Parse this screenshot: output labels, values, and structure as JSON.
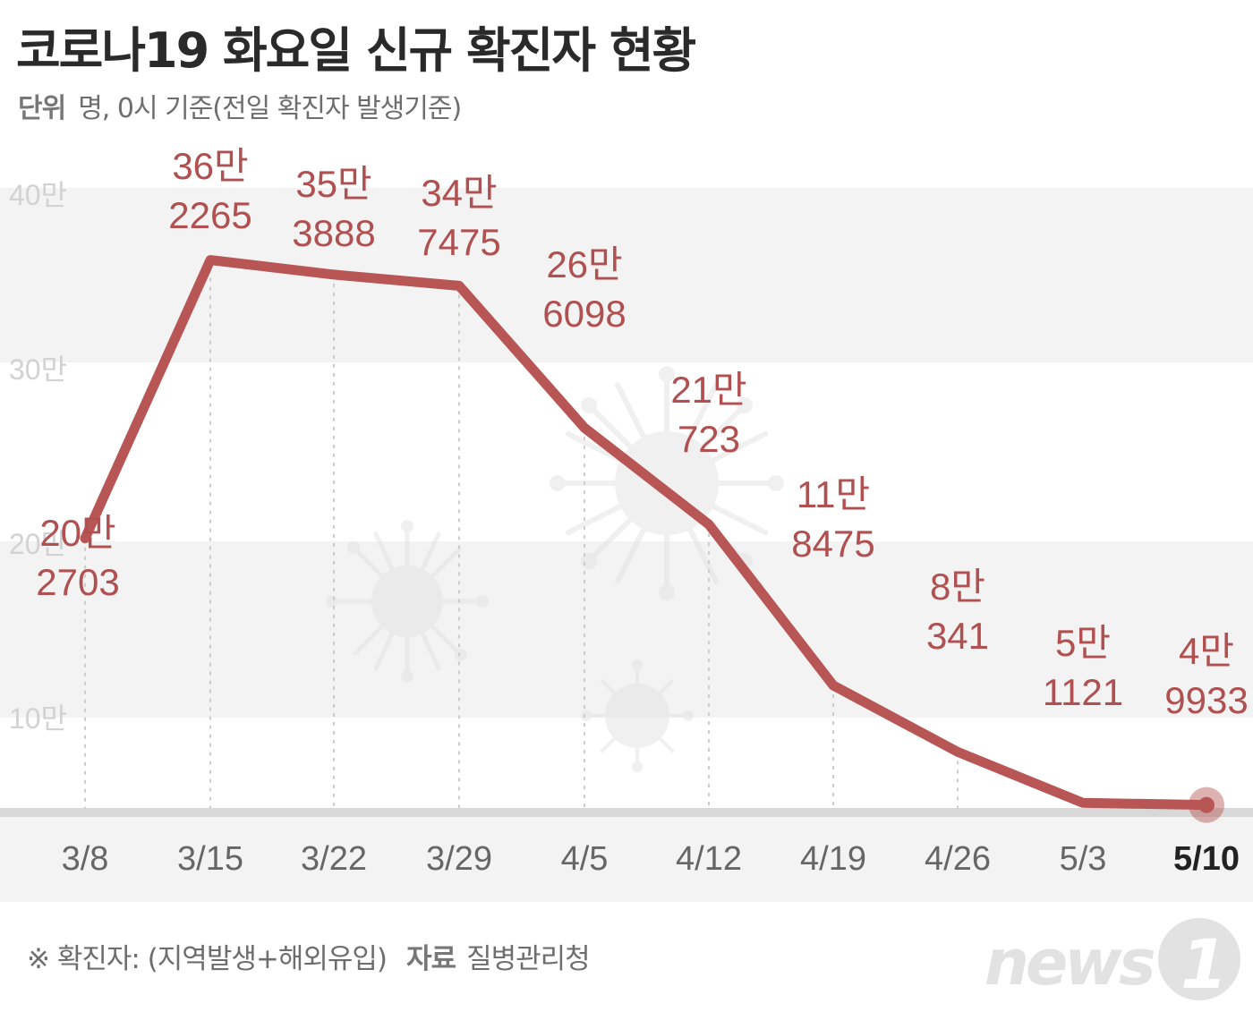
{
  "header": {
    "title": "코로나19 화요일 신규 확진자 현황",
    "unit_label": "단위",
    "unit_text": "명, 0시 기준(전일 확진자 발생기준)"
  },
  "footer": {
    "note": "※ 확진자: (지역발생+해외유입)",
    "source_label": "자료",
    "source": "질병관리청"
  },
  "logo": {
    "text": "news1"
  },
  "colors": {
    "line": "#b85555",
    "label": "#b05050",
    "band": "#f3f3f3",
    "axis_text": "#666666",
    "highlight": "#222222"
  },
  "chart_data": {
    "type": "line",
    "title": "코로나19 화요일 신규 확진자 현황",
    "categories": [
      "3/8",
      "3/15",
      "3/22",
      "3/29",
      "4/5",
      "4/12",
      "4/19",
      "4/26",
      "5/3",
      "5/10"
    ],
    "values": [
      202703,
      362265,
      353888,
      347475,
      266098,
      210723,
      118475,
      80341,
      51121,
      49933
    ],
    "value_labels": [
      [
        "20만",
        "2703"
      ],
      [
        "36만",
        "2265"
      ],
      [
        "35만",
        "3888"
      ],
      [
        "34만",
        "7475"
      ],
      [
        "26만",
        "6098"
      ],
      [
        "21만",
        "723"
      ],
      [
        "11만",
        "8475"
      ],
      [
        "8만",
        "341"
      ],
      [
        "5만",
        "1121"
      ],
      [
        "4만",
        "9933"
      ]
    ],
    "y_ticks": [
      100000,
      200000,
      300000,
      400000
    ],
    "y_tick_labels": [
      "10만",
      "20만",
      "30만",
      "40만"
    ],
    "ylim": [
      0,
      400000
    ],
    "highlight_index": 9,
    "grid": true
  }
}
